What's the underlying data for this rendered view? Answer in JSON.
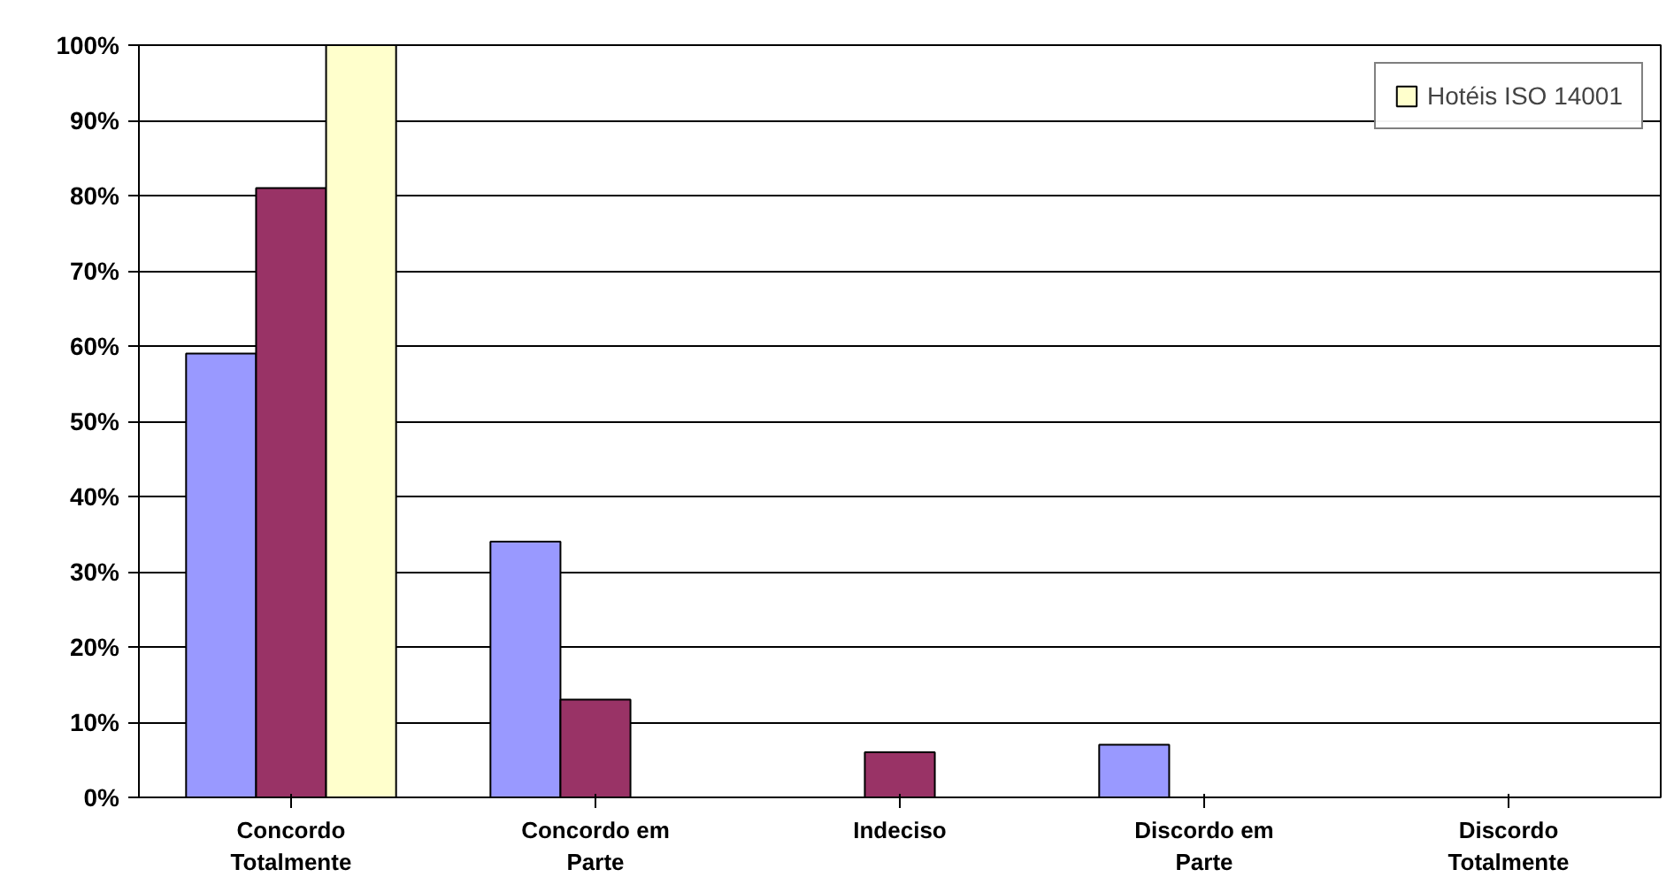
{
  "chart_data": {
    "type": "bar",
    "categories": [
      "Concordo Totalmente",
      "Concordo em Parte",
      "Indeciso",
      "Discordo em Parte",
      "Discordo Totalmente"
    ],
    "series": [
      {
        "color": "#9999ff",
        "values": [
          59,
          34,
          0,
          7,
          0
        ]
      },
      {
        "color": "#993366",
        "values": [
          81,
          13,
          6,
          0,
          0
        ]
      },
      {
        "name": "Hotéis ISO 14001",
        "color": "#ffffcc",
        "values": [
          100,
          0,
          0,
          0,
          0
        ]
      }
    ],
    "ylim": [
      0,
      100
    ],
    "yticks": [
      {
        "value": 0,
        "label": "0%"
      },
      {
        "value": 10,
        "label": "10%"
      },
      {
        "value": 20,
        "label": "20%"
      },
      {
        "value": 30,
        "label": "30%"
      },
      {
        "value": 40,
        "label": "40%"
      },
      {
        "value": 50,
        "label": "50%"
      },
      {
        "value": 60,
        "label": "60%"
      },
      {
        "value": 70,
        "label": "70%"
      },
      {
        "value": 80,
        "label": "80%"
      },
      {
        "value": 90,
        "label": "90%"
      },
      {
        "value": 100,
        "label": "100%"
      }
    ],
    "grid": "y",
    "legend": "top right"
  }
}
